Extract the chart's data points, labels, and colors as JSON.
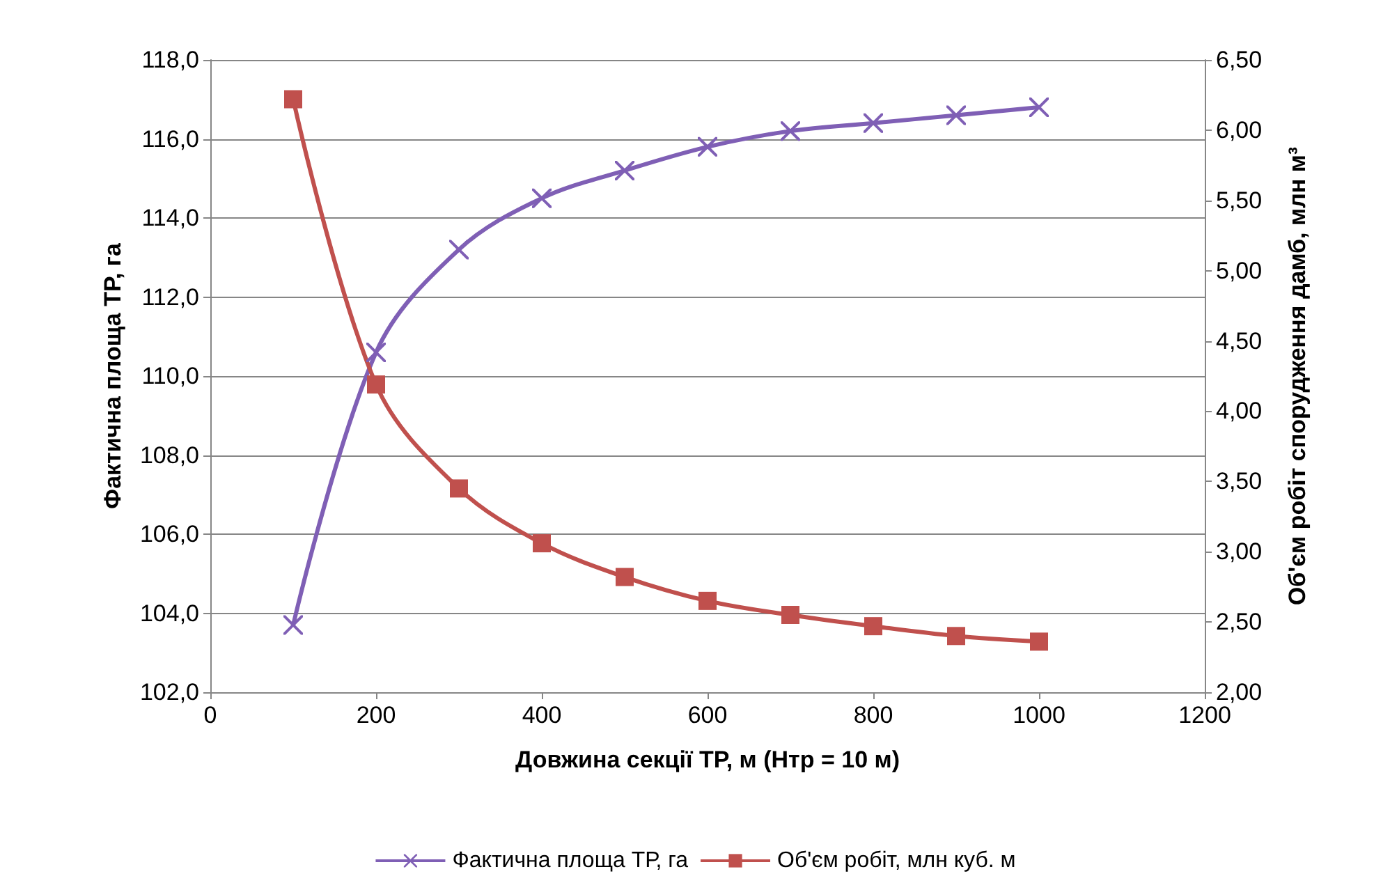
{
  "chart_data": {
    "type": "line",
    "xlabel": "Довжина секції ТР, м (Нтр = 10 м)",
    "ylabel": "Фактична площа ТР, га",
    "y2label": "Об'єм робіт спорудження дамб, млн м³",
    "x": [
      100,
      200,
      300,
      400,
      500,
      600,
      700,
      800,
      900,
      1000
    ],
    "series": [
      {
        "name": "Фактична площа ТР, га",
        "color": "#7f5fb5",
        "marker": "cross",
        "values": [
          103.7,
          110.6,
          113.2,
          114.5,
          115.2,
          115.8,
          116.2,
          116.4,
          116.6,
          116.8
        ]
      },
      {
        "name": "Об'єм робіт, млн куб. м",
        "color": "#c0504d",
        "marker": "square",
        "axis": "y2",
        "values": [
          6.22,
          4.19,
          3.45,
          3.06,
          2.82,
          2.65,
          2.55,
          2.47,
          2.4,
          2.36
        ]
      }
    ],
    "xlim": [
      0,
      1200
    ],
    "xticks": [
      0,
      200,
      400,
      600,
      800,
      1000,
      1200
    ],
    "ylim": [
      102,
      118
    ],
    "yticks": [
      {
        "value": 102,
        "label": "102,0"
      },
      {
        "value": 104,
        "label": "104,0"
      },
      {
        "value": 106,
        "label": "106,0"
      },
      {
        "value": 108,
        "label": "108,0"
      },
      {
        "value": 110,
        "label": "110,0"
      },
      {
        "value": 112,
        "label": "112,0"
      },
      {
        "value": 114,
        "label": "114,0"
      },
      {
        "value": 116,
        "label": "116,0"
      },
      {
        "value": 118,
        "label": "118,0"
      }
    ],
    "y2lim": [
      2,
      6.5
    ],
    "y2ticks": [
      {
        "value": 2,
        "label": "2,00"
      },
      {
        "value": 2.5,
        "label": "2,50"
      },
      {
        "value": 3,
        "label": "3,00"
      },
      {
        "value": 3.5,
        "label": "3,50"
      },
      {
        "value": 4,
        "label": "4,00"
      },
      {
        "value": 4.5,
        "label": "4,50"
      },
      {
        "value": 5,
        "label": "5,00"
      },
      {
        "value": 5.5,
        "label": "5,50"
      },
      {
        "value": 6,
        "label": "6,00"
      },
      {
        "value": 6.5,
        "label": "6,50"
      }
    ],
    "grid": "y",
    "legend": "bottom"
  }
}
